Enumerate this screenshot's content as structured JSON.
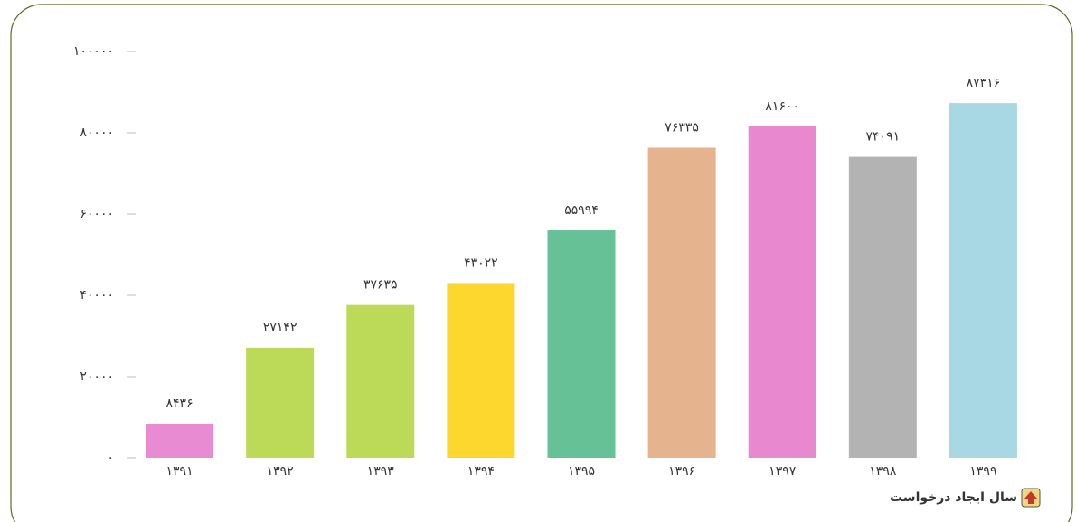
{
  "chart_data": {
    "type": "bar",
    "x_label": "سال ایجاد درخواست",
    "categories": [
      "۱۳۹۱",
      "۱۳۹۲",
      "۱۳۹۳",
      "۱۳۹۴",
      "۱۳۹۵",
      "۱۳۹۶",
      "۱۳۹۷",
      "۱۳۹۸",
      "۱۳۹۹"
    ],
    "values": [
      8436,
      27142,
      37635,
      43022,
      55994,
      76335,
      81600,
      74091,
      87316
    ],
    "value_labels": [
      "۸۴۳۶",
      "۲۷۱۴۲",
      "۳۷۶۳۵",
      "۴۳۰۲۲",
      "۵۵۹۹۴",
      "۷۶۳۳۵",
      "۸۱۶۰۰",
      "۷۴۰۹۱",
      "۸۷۳۱۶"
    ],
    "colors": [
      "#e88bd2",
      "#bcd957",
      "#bcd957",
      "#fdd62e",
      "#66c296",
      "#e5b48f",
      "#e889d0",
      "#b3b3b3",
      "#a8d8e4"
    ],
    "ylim": [
      0,
      100000
    ],
    "yticks": [
      {
        "value": 0,
        "label": "۰"
      },
      {
        "value": 20000,
        "label": "۲۰۰۰۰"
      },
      {
        "value": 40000,
        "label": "۴۰۰۰۰"
      },
      {
        "value": 60000,
        "label": "۶۰۰۰۰"
      },
      {
        "value": 80000,
        "label": "۸۰۰۰۰"
      },
      {
        "value": 100000,
        "label": "۱۰۰۰۰۰"
      }
    ],
    "grid": false
  }
}
